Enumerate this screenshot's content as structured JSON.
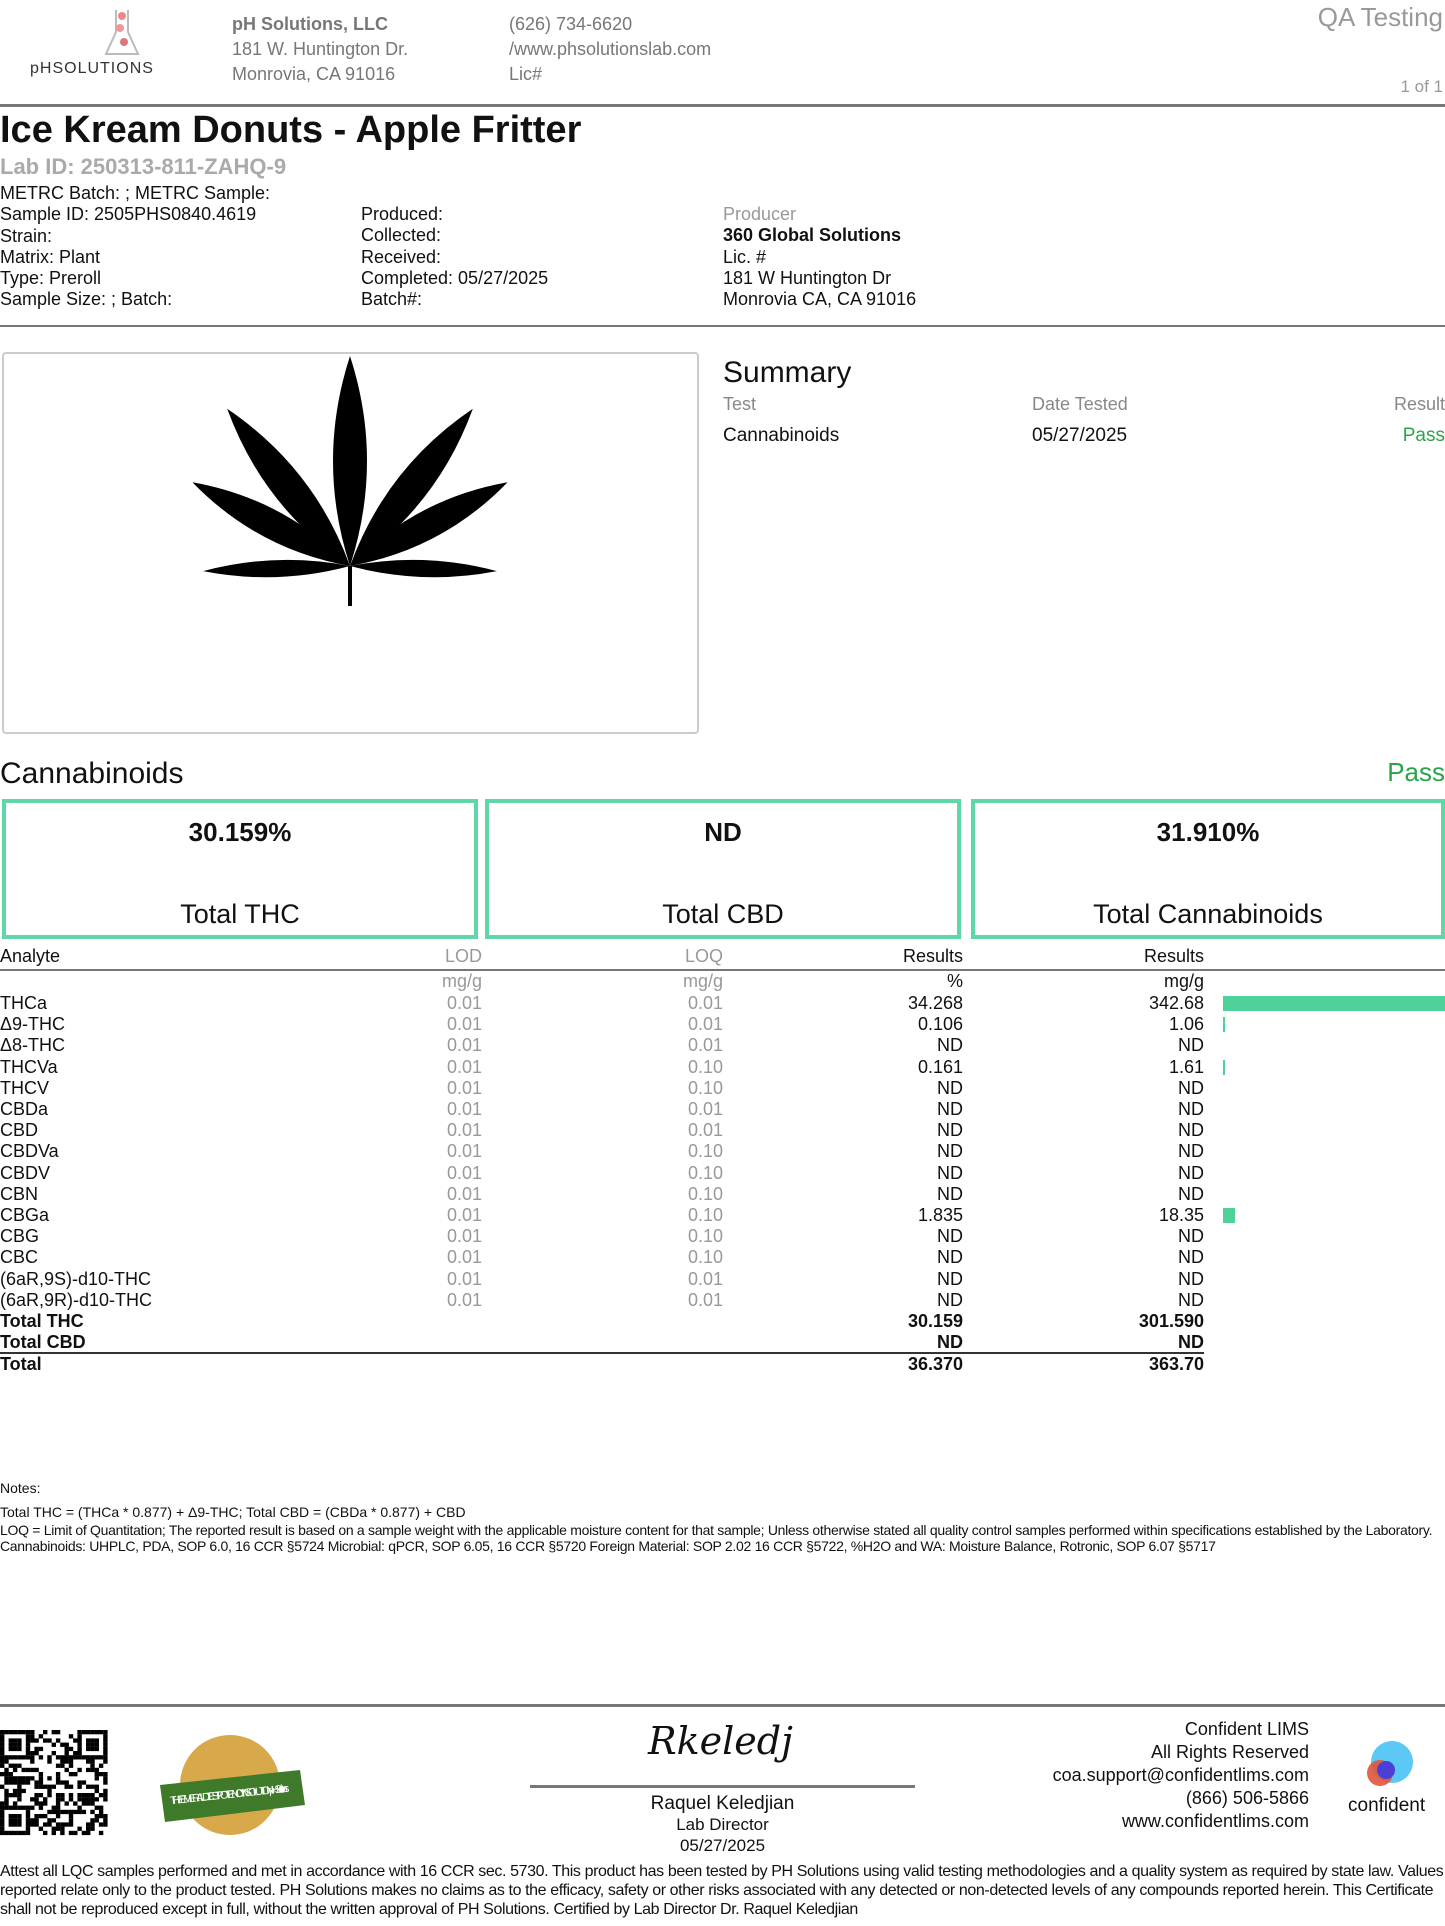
{
  "header": {
    "logo_text": "pHSOLUTIONS",
    "company": "pH Solutions, LLC",
    "address1": "181 W. Huntington Dr.",
    "address2": "Monrovia, CA 91016",
    "phone": "(626) 734-6620",
    "website": "/www.phsolutionslab.com",
    "license": "Lic#",
    "doc_type": "QA Testing",
    "page": "1 of 1"
  },
  "product": {
    "title": "Ice Kream Donuts - Apple Fritter",
    "lab_id": "Lab ID: 250313-811-ZAHQ-9"
  },
  "info": {
    "col1": [
      "METRC Batch: ; METRC Sample:",
      "Sample ID: 2505PHS0840.4619",
      "Strain:",
      "Matrix: Plant",
      "Type: Preroll",
      "Sample Size: ; Batch:"
    ],
    "col2": [
      "Produced:",
      "Collected:",
      "Received:",
      "Completed: 05/27/2025",
      "Batch#:"
    ],
    "producer_label": "Producer",
    "producer_name": "360 Global Solutions",
    "producer_lic": "Lic. #",
    "producer_addr1": "181 W Huntington Dr",
    "producer_addr2": "Monrovia CA, CA 91016"
  },
  "summary": {
    "title": "Summary",
    "headers": [
      "Test",
      "Date Tested",
      "Result"
    ],
    "rows": [
      {
        "test": "Cannabinoids",
        "date": "05/27/2025",
        "result": "Pass"
      }
    ]
  },
  "cannabinoids": {
    "title": "Cannabinoids",
    "status": "Pass",
    "accent": "#4fd29a",
    "totals": [
      {
        "value": "30.159%",
        "label": "Total THC"
      },
      {
        "value": "ND",
        "label": "Total CBD"
      },
      {
        "value": "31.910%",
        "label": "Total Cannabinoids"
      }
    ],
    "headers": [
      "Analyte",
      "LOD",
      "LOQ",
      "Results",
      "Results"
    ],
    "units": [
      "mg/g",
      "mg/g",
      "%",
      "mg/g"
    ],
    "rows": [
      {
        "analyte": "THCa",
        "lod": "0.01",
        "loq": "0.01",
        "pct": "34.268",
        "mgg": "342.68",
        "level": 342.68
      },
      {
        "analyte": "Δ9-THC",
        "lod": "0.01",
        "loq": "0.01",
        "pct": "0.106",
        "mgg": "1.06",
        "level": 1.06
      },
      {
        "analyte": "Δ8-THC",
        "lod": "0.01",
        "loq": "0.01",
        "pct": "ND",
        "mgg": "ND",
        "level": 0
      },
      {
        "analyte": "THCVa",
        "lod": "0.01",
        "loq": "0.10",
        "pct": "0.161",
        "mgg": "1.61",
        "level": 1.61
      },
      {
        "analyte": "THCV",
        "lod": "0.01",
        "loq": "0.10",
        "pct": "ND",
        "mgg": "ND",
        "level": 0
      },
      {
        "analyte": "CBDa",
        "lod": "0.01",
        "loq": "0.01",
        "pct": "ND",
        "mgg": "ND",
        "level": 0
      },
      {
        "analyte": "CBD",
        "lod": "0.01",
        "loq": "0.01",
        "pct": "ND",
        "mgg": "ND",
        "level": 0
      },
      {
        "analyte": "CBDVa",
        "lod": "0.01",
        "loq": "0.10",
        "pct": "ND",
        "mgg": "ND",
        "level": 0
      },
      {
        "analyte": "CBDV",
        "lod": "0.01",
        "loq": "0.10",
        "pct": "ND",
        "mgg": "ND",
        "level": 0
      },
      {
        "analyte": "CBN",
        "lod": "0.01",
        "loq": "0.10",
        "pct": "ND",
        "mgg": "ND",
        "level": 0
      },
      {
        "analyte": "CBGa",
        "lod": "0.01",
        "loq": "0.10",
        "pct": "1.835",
        "mgg": "18.35",
        "level": 18.35
      },
      {
        "analyte": "CBG",
        "lod": "0.01",
        "loq": "0.10",
        "pct": "ND",
        "mgg": "ND",
        "level": 0
      },
      {
        "analyte": "CBC",
        "lod": "0.01",
        "loq": "0.10",
        "pct": "ND",
        "mgg": "ND",
        "level": 0
      },
      {
        "analyte": "(6aR,9S)-d10-THC",
        "lod": "0.01",
        "loq": "0.01",
        "pct": "ND",
        "mgg": "ND",
        "level": 0
      },
      {
        "analyte": "(6aR,9R)-d10-THC",
        "lod": "0.01",
        "loq": "0.01",
        "pct": "ND",
        "mgg": "ND",
        "level": 0
      }
    ],
    "total_rows": [
      {
        "analyte": "Total THC",
        "pct": "30.159",
        "mgg": "301.590"
      },
      {
        "analyte": "Total CBD",
        "pct": "ND",
        "mgg": "ND"
      },
      {
        "analyte": "Total",
        "pct": "36.370",
        "mgg": "363.70"
      }
    ]
  },
  "notes": {
    "label": "Notes:",
    "line1": "Total THC = (THCa * 0.877) + Δ9-THC; Total CBD = (CBDa * 0.877) + CBD",
    "line2": "LOQ = Limit of Quantitation; The reported result is based on a sample weight with the applicable moisture content for that sample; Unless otherwise stated all quality control samples performed within specifications established by the Laboratory. Cannabinoids: UHPLC,  PDA, SOP 6.0, 16 CCR §5724 Microbial: qPCR, SOP 6.05, 16 CCR §5720  Foreign Material: SOP 2.02 16 CCR §5722, %H2O and WA: Moisture  Balance,  Rotronic, SOP 6.07 §5717"
  },
  "footer": {
    "badge_text": "THE EMERALD TEST · POTENCY IN SOLUTION · pH Solutions",
    "signature": "Rkeledj",
    "signer": "Raquel Keledjian",
    "signer_title": "Lab Director",
    "sign_date": "05/27/2025",
    "lims": [
      "Confident LIMS",
      "All Rights Reserved",
      "coa.support@confidentlims.com",
      "(866) 506-5866",
      "www.confidentlims.com"
    ],
    "lims_logo": "confident",
    "disclaimer": "Attest all LQC samples performed and met in accordance with 16 CCR sec. 5730. This product has been tested by PH Solutions using valid testing methodologies and a quality system as required by state law. Values reported relate only to the product tested. PH Solutions makes no claims as to the efficacy, safety or other risks associated with any detected or non-detected levels of any compounds reported herein. This Certificate shall not be reproduced except in full, without the written approval of PH Solutions. Certified by Lab Director  Dr. Raquel Keledjian"
  }
}
